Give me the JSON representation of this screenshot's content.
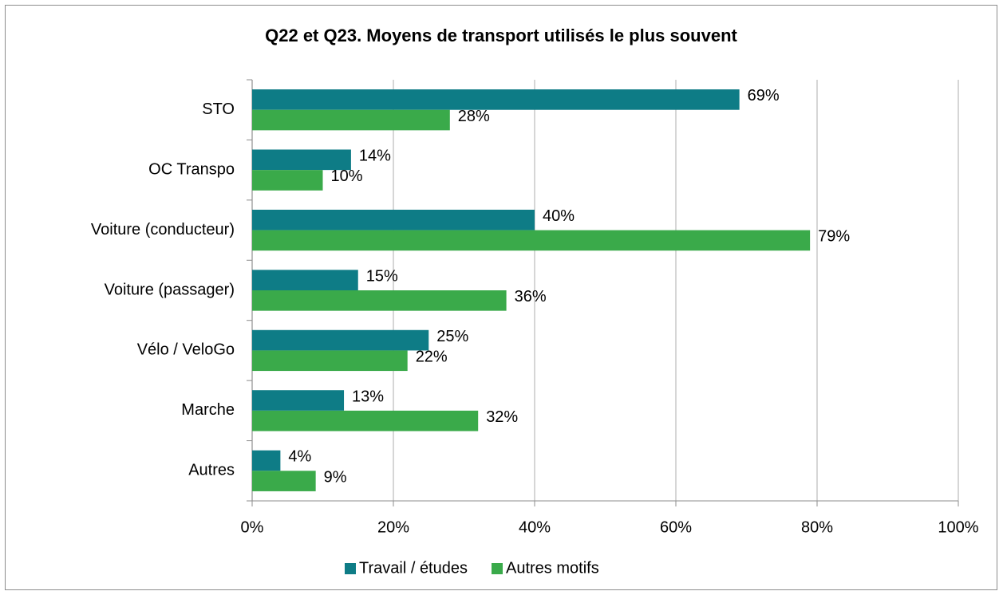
{
  "chart_data": {
    "type": "bar",
    "orientation": "horizontal",
    "title": "Q22 et Q23. Moyens de transport utilisés le plus souvent",
    "categories": [
      "STO",
      "OC Transpo",
      "Voiture (conducteur)",
      "Voiture (passager)",
      "Vélo / VeloGo",
      "Marche",
      "Autres"
    ],
    "series": [
      {
        "name": "Travail / études",
        "color": "#0e7c86",
        "values": [
          69,
          14,
          40,
          15,
          25,
          13,
          4
        ],
        "value_labels": [
          "69%",
          "14%",
          "40%",
          "15%",
          "25%",
          "13%",
          "4%"
        ]
      },
      {
        "name": "Autres motifs",
        "color": "#3aaa4a",
        "values": [
          28,
          10,
          79,
          36,
          22,
          32,
          9
        ],
        "value_labels": [
          "28%",
          "10%",
          "79%",
          "36%",
          "22%",
          "32%",
          "9%"
        ]
      }
    ],
    "xlim": [
      0,
      100
    ],
    "xticks": [
      {
        "value": 0,
        "label": "0%"
      },
      {
        "value": 20,
        "label": "20%"
      },
      {
        "value": 40,
        "label": "40%"
      },
      {
        "value": 60,
        "label": "60%"
      },
      {
        "value": 80,
        "label": "80%"
      },
      {
        "value": 100,
        "label": "100%"
      }
    ],
    "grid": true,
    "legend": "bottom"
  }
}
